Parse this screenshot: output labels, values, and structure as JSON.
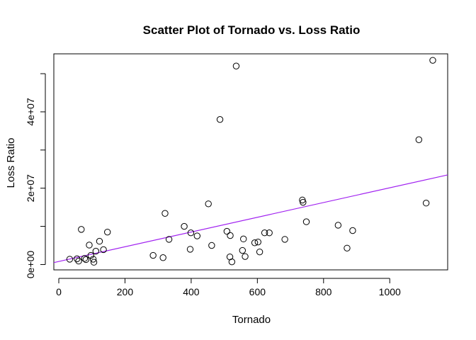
{
  "chart_data": {
    "type": "scatter",
    "title": "Scatter Plot of Tornado vs. Loss Ratio",
    "xlabel": "Tornado",
    "ylabel": "Loss Ratio",
    "xlim": [
      -15,
      1175
    ],
    "ylim": [
      -1400000,
      55200000
    ],
    "x_ticks": [
      0,
      200,
      400,
      600,
      800,
      1000
    ],
    "x_tick_labels": [
      "0",
      "200",
      "400",
      "600",
      "800",
      "1000"
    ],
    "y_ticks": [
      0,
      20000000,
      40000000
    ],
    "y_tick_labels": [
      "0e+00",
      "2e+07",
      "4e+07"
    ],
    "grid": false,
    "series": [
      {
        "x": [
          33,
          55,
          60,
          68,
          78,
          82,
          92,
          97,
          104,
          106,
          112,
          123,
          135,
          147,
          285,
          315,
          321,
          333,
          379,
          397,
          399,
          418,
          452,
          462,
          487,
          508,
          517,
          518,
          523,
          536,
          555,
          558,
          563,
          592,
          602,
          607,
          622,
          636,
          683,
          736,
          738,
          748,
          844,
          871,
          888,
          1088,
          1110,
          1130
        ],
        "y": [
          1400000,
          1500000,
          900000,
          9200000,
          1600000,
          1300000,
          5100000,
          2400000,
          1400000,
          600000,
          3500000,
          6100000,
          3900000,
          8500000,
          2400000,
          1800000,
          13400000,
          6600000,
          10000000,
          4000000,
          8300000,
          7500000,
          15900000,
          5000000,
          38000000,
          8700000,
          2000000,
          7600000,
          700000,
          52000000,
          3700000,
          6700000,
          2100000,
          5700000,
          5900000,
          3300000,
          8300000,
          8300000,
          6600000,
          16900000,
          16300000,
          11200000,
          10300000,
          4300000,
          8900000,
          32700000,
          16100000,
          53500000
        ]
      }
    ],
    "regression_line": {
      "intercept": 800000,
      "slope": 19300,
      "color": "#a020f0"
    }
  }
}
